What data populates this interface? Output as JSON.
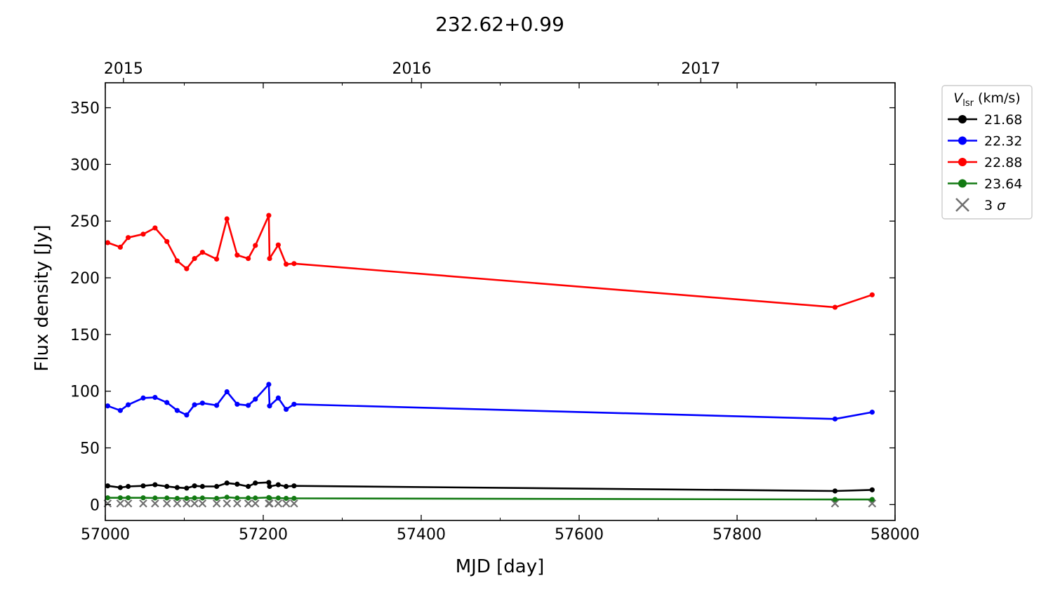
{
  "chart_data": {
    "type": "line",
    "title": "232.62+0.99",
    "xlabel": "MJD [day]",
    "ylabel": "Flux density [Jy]",
    "xlim": [
      57000,
      58000
    ],
    "ylim": [
      -14,
      372
    ],
    "xticks": [
      57000,
      57200,
      57400,
      57600,
      57800,
      58000
    ],
    "yticks": [
      0,
      50,
      100,
      150,
      200,
      250,
      300,
      350
    ],
    "top_axis": {
      "ticks": [
        {
          "label": "2015",
          "mjd": 57023
        },
        {
          "label": "2016",
          "mjd": 57388
        },
        {
          "label": "2017",
          "mjd": 57754
        }
      ]
    },
    "legend": {
      "title_symbol": "V",
      "title_subscript": "lsr",
      "title_suffix": " (km/s)",
      "placement": "outside-right-top",
      "sigma_label": "3 σ"
    },
    "x": [
      57003,
      57019,
      57029,
      57048,
      57063,
      57078,
      57091,
      57103,
      57113,
      57123,
      57141,
      57154,
      57167,
      57181,
      57190,
      57207,
      57208,
      57219,
      57229,
      57239,
      57924,
      57971
    ],
    "series": [
      {
        "name": "21.68",
        "color": "#000000",
        "values": [
          16.5,
          15.0,
          16.0,
          16.5,
          17.5,
          16.0,
          15.0,
          14.5,
          16.5,
          16.0,
          16.0,
          19.0,
          18.0,
          16.0,
          19.0,
          19.5,
          16.0,
          17.5,
          16.0,
          16.5,
          12.0,
          13.0
        ]
      },
      {
        "name": "22.32",
        "color": "#0000ff",
        "values": [
          87.0,
          83.0,
          88.0,
          94.0,
          94.5,
          90.0,
          83.0,
          79.0,
          88.0,
          89.5,
          87.5,
          99.5,
          88.5,
          87.5,
          93.0,
          106.0,
          87.0,
          94.0,
          84.0,
          88.5,
          75.5,
          81.5
        ]
      },
      {
        "name": "22.88",
        "color": "#ff0000",
        "values": [
          231.0,
          227.0,
          235.5,
          238.5,
          244.0,
          232.0,
          215.0,
          208.0,
          217.0,
          222.5,
          216.5,
          252.0,
          220.0,
          217.0,
          228.5,
          255.0,
          217.0,
          229.0,
          212.0,
          212.5,
          174.0,
          185.0
        ]
      },
      {
        "name": "23.64",
        "color": "#137a13",
        "values": [
          6.0,
          6.0,
          6.0,
          6.0,
          5.8,
          5.8,
          5.5,
          5.5,
          5.8,
          5.8,
          5.5,
          6.5,
          5.8,
          5.8,
          5.8,
          6.2,
          5.8,
          5.8,
          5.5,
          5.5,
          4.5,
          4.5
        ]
      }
    ],
    "sigma3": {
      "name": "3 σ",
      "color": "#707070",
      "values": [
        1.0,
        1.0,
        1.0,
        1.0,
        1.0,
        1.0,
        1.0,
        1.0,
        1.0,
        1.0,
        1.0,
        1.0,
        1.0,
        1.0,
        1.0,
        1.0,
        1.0,
        1.0,
        1.0,
        1.0,
        1.0,
        1.0
      ]
    }
  }
}
